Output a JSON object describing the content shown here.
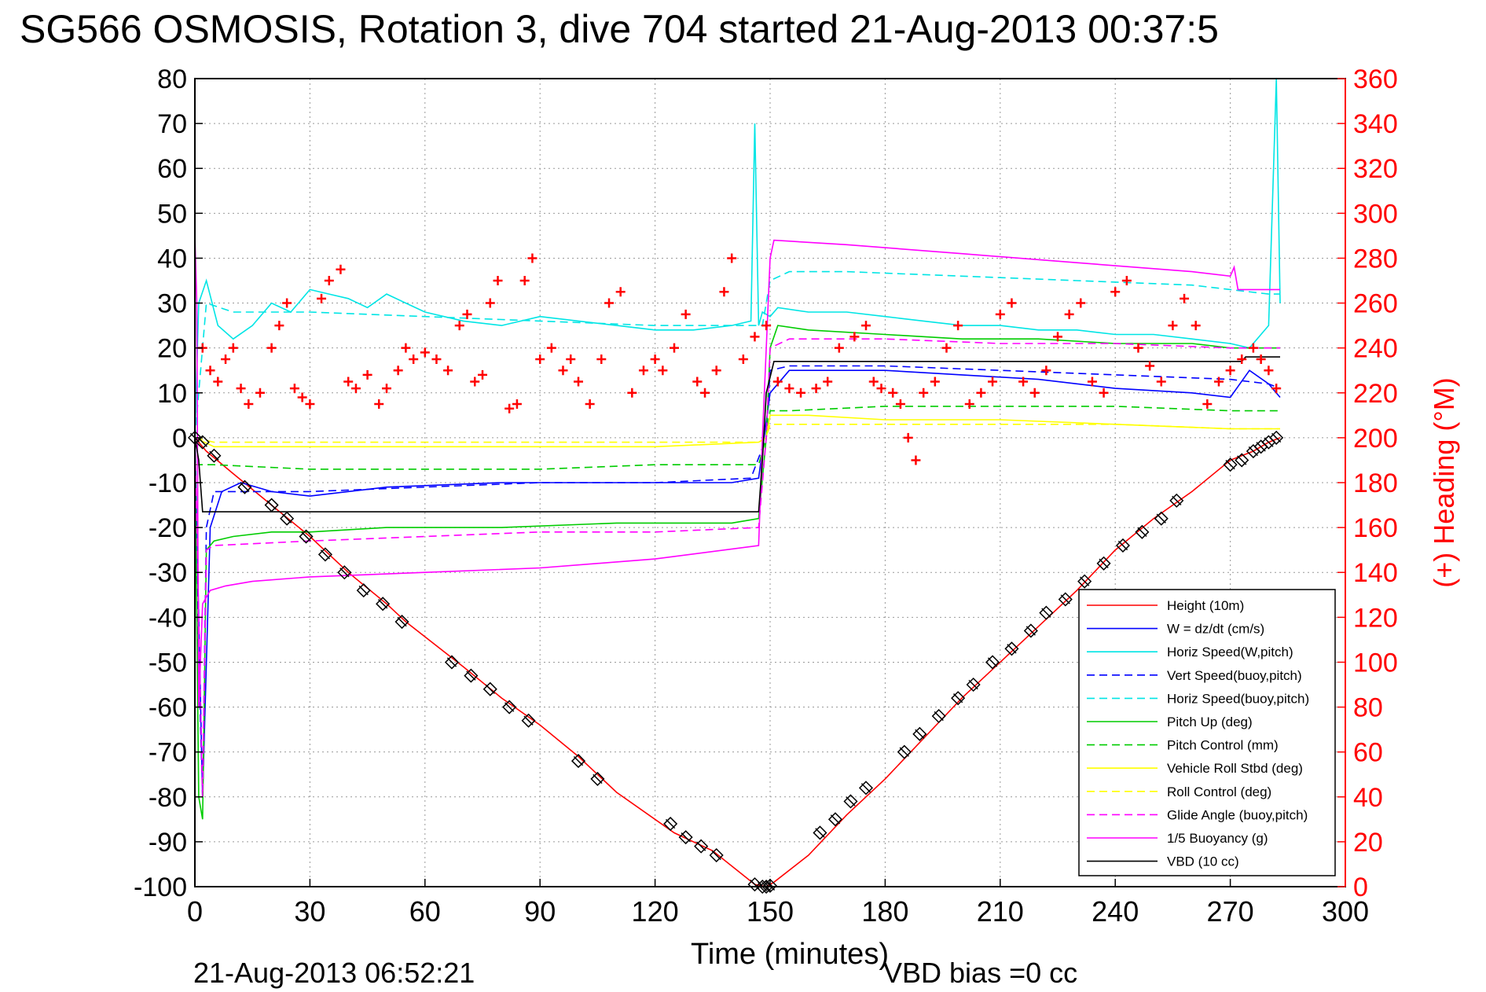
{
  "chart_data": {
    "type": "line",
    "title": "SG566 OSMOSIS, Rotation 3, dive 704 started 21-Aug-2013 00:37:5",
    "xlabel": "Time (minutes)",
    "ylabel": "",
    "y2label": "(+) Heading (°M)",
    "xlim": [
      0,
      300
    ],
    "ylim": [
      -100,
      80
    ],
    "y2lim": [
      0,
      360
    ],
    "xticks": [
      0,
      30,
      60,
      90,
      120,
      150,
      180,
      210,
      240,
      270,
      300
    ],
    "yticks": [
      -100,
      -90,
      -80,
      -70,
      -60,
      -50,
      -40,
      -30,
      -20,
      -10,
      0,
      10,
      20,
      30,
      40,
      50,
      60,
      70,
      80
    ],
    "y2ticks": [
      0,
      20,
      40,
      60,
      80,
      100,
      120,
      140,
      160,
      180,
      200,
      220,
      240,
      260,
      280,
      300,
      320,
      340,
      360
    ],
    "grid": true,
    "legend_position": "lower-right",
    "footer_date": "21-Aug-2013 06:52:21",
    "footer_bias": "VBD bias =0 cc",
    "series": [
      {
        "name": "Height (10m)",
        "color": "#ff0000",
        "dash": "solid",
        "x": [
          0,
          3,
          10,
          20,
          30,
          40,
          50,
          55,
          70,
          80,
          90,
          100,
          110,
          125,
          135,
          146,
          149,
          151,
          160,
          170,
          180,
          190,
          200,
          210,
          220,
          230,
          240,
          250,
          260,
          270,
          276,
          280,
          283
        ],
        "y": [
          0,
          -3,
          -8,
          -15,
          -22,
          -30,
          -37,
          -41,
          -51,
          -58,
          -64,
          -71,
          -79,
          -88,
          -92,
          -99.5,
          -100,
          -99,
          -93,
          -84,
          -76,
          -67,
          -58,
          -50,
          -42,
          -34,
          -25,
          -18,
          -12,
          -5,
          -3,
          -1,
          0
        ]
      },
      {
        "name": "W = dz/dt (cm/s)",
        "color": "#0000ff",
        "dash": "solid",
        "x": [
          0,
          1,
          2,
          4,
          7,
          12,
          20,
          30,
          50,
          80,
          110,
          140,
          147,
          150,
          155,
          160,
          180,
          200,
          220,
          240,
          260,
          270,
          275,
          280,
          283
        ],
        "y": [
          0,
          -40,
          -80,
          -20,
          -12,
          -10,
          -12,
          -13,
          -11,
          -10,
          -10,
          -10,
          -9,
          10,
          15,
          15,
          15,
          14,
          13,
          11,
          10,
          9,
          15,
          12,
          9
        ]
      },
      {
        "name": "Horiz Speed(W,pitch)",
        "color": "#00e5e5",
        "dash": "solid",
        "x": [
          0,
          1,
          3,
          6,
          10,
          15,
          20,
          25,
          30,
          35,
          40,
          45,
          50,
          55,
          60,
          70,
          80,
          90,
          100,
          110,
          120,
          130,
          140,
          145,
          146,
          147,
          148,
          150,
          152,
          160,
          170,
          180,
          190,
          200,
          210,
          220,
          230,
          240,
          250,
          260,
          270,
          275,
          280,
          282,
          283
        ],
        "y": [
          0,
          30,
          35,
          25,
          22,
          25,
          30,
          28,
          33,
          32,
          31,
          29,
          32,
          30,
          28,
          26,
          25,
          27,
          26,
          25,
          24,
          24,
          25,
          26,
          70,
          25,
          28,
          27,
          29,
          28,
          28,
          27,
          26,
          25,
          25,
          24,
          24,
          23,
          23,
          22,
          21,
          20,
          25,
          80,
          30
        ]
      },
      {
        "name": "Vert Speed(buoy,pitch)",
        "color": "#0000ff",
        "dash": "dashed",
        "x": [
          0,
          1,
          2,
          3,
          5,
          15,
          30,
          60,
          90,
          120,
          145,
          149,
          150,
          155,
          180,
          210,
          240,
          270,
          280,
          283
        ],
        "y": [
          0,
          -50,
          -80,
          -20,
          -12,
          -12,
          -12,
          -11,
          -10,
          -10,
          -9,
          0,
          15,
          16,
          16,
          15,
          14,
          13,
          12,
          11
        ]
      },
      {
        "name": "Horiz Speed(buoy,pitch)",
        "color": "#00e5e5",
        "dash": "dashed",
        "x": [
          0,
          3,
          10,
          30,
          60,
          90,
          120,
          145,
          148,
          150,
          155,
          170,
          200,
          230,
          260,
          280,
          283
        ],
        "y": [
          0,
          30,
          28,
          28,
          27,
          26,
          25,
          25,
          25,
          35,
          37,
          37,
          36,
          35,
          34,
          32,
          32
        ]
      },
      {
        "name": "Pitch Up (deg)",
        "color": "#00cc00",
        "dash": "solid",
        "x": [
          0,
          1,
          2,
          3,
          5,
          10,
          20,
          30,
          50,
          80,
          110,
          140,
          147,
          149,
          150,
          152,
          160,
          180,
          200,
          220,
          240,
          260,
          270,
          280,
          283
        ],
        "y": [
          0,
          -80,
          -85,
          -25,
          -23,
          -22,
          -21,
          -21,
          -20,
          -20,
          -19,
          -19,
          -18,
          0,
          20,
          25,
          24,
          23,
          22,
          22,
          21,
          21,
          20,
          20,
          20
        ]
      },
      {
        "name": "Pitch Control (mm)",
        "color": "#00cc00",
        "dash": "dashed",
        "x": [
          0,
          5,
          30,
          60,
          90,
          120,
          147,
          149,
          150,
          155,
          180,
          210,
          240,
          270,
          283
        ],
        "y": [
          -6,
          -6,
          -7,
          -7,
          -7,
          -6,
          -6,
          0,
          6,
          6,
          7,
          7,
          7,
          6,
          6
        ]
      },
      {
        "name": "Vehicle Roll Stbd (deg)",
        "color": "#ffff00",
        "dash": "solid",
        "x": [
          0,
          5,
          30,
          60,
          90,
          120,
          147,
          149,
          150,
          160,
          180,
          210,
          240,
          270,
          283
        ],
        "y": [
          0,
          -2,
          -2,
          -2,
          -2,
          -2,
          -1,
          0,
          5,
          5,
          4,
          4,
          3,
          2,
          2
        ]
      },
      {
        "name": "Roll Control (deg)",
        "color": "#ffff00",
        "dash": "dashed",
        "x": [
          0,
          5,
          30,
          60,
          90,
          120,
          147,
          149,
          150,
          160,
          180,
          210,
          240,
          270,
          283
        ],
        "y": [
          0,
          -1,
          -1,
          -1,
          -1,
          -1,
          -1,
          0,
          3,
          3,
          3,
          3,
          3,
          2,
          2
        ]
      },
      {
        "name": "Glide Angle (buoy,pitch)",
        "color": "#ff00ff",
        "dash": "dashed",
        "x": [
          0,
          1,
          2,
          3,
          5,
          30,
          60,
          90,
          120,
          147,
          149,
          150,
          155,
          180,
          210,
          240,
          270,
          283
        ],
        "y": [
          0,
          -40,
          -80,
          -25,
          -24,
          -23,
          -22,
          -21,
          -21,
          -20,
          0,
          20,
          22,
          22,
          21,
          21,
          20,
          20
        ]
      },
      {
        "name": "1/5 Buoyancy (g)",
        "color": "#ff00ff",
        "dash": "solid",
        "x": [
          0,
          0.5,
          1,
          2,
          4,
          8,
          15,
          30,
          60,
          90,
          120,
          147,
          148,
          149,
          150,
          151,
          170,
          200,
          230,
          260,
          270,
          271,
          272,
          280,
          283
        ],
        "y": [
          45,
          30,
          -60,
          -37,
          -34,
          -33,
          -32,
          -31,
          -30,
          -29,
          -27,
          -24,
          0,
          20,
          40,
          44,
          43,
          41,
          39,
          37,
          36,
          38,
          33,
          33,
          33
        ]
      },
      {
        "name": "VBD (10 cc)",
        "color": "#000000",
        "dash": "solid",
        "x": [
          0,
          1,
          2,
          147,
          148,
          149,
          151,
          273,
          274,
          283
        ],
        "y": [
          0,
          -5,
          -16.5,
          -16.5,
          -5,
          10,
          17,
          17,
          18,
          18
        ]
      }
    ],
    "heading_points": [
      [
        2,
        240
      ],
      [
        4,
        230
      ],
      [
        6,
        225
      ],
      [
        8,
        235
      ],
      [
        10,
        240
      ],
      [
        12,
        222
      ],
      [
        14,
        215
      ],
      [
        17,
        220
      ],
      [
        20,
        240
      ],
      [
        22,
        250
      ],
      [
        24,
        260
      ],
      [
        26,
        222
      ],
      [
        28,
        218
      ],
      [
        30,
        215
      ],
      [
        33,
        262
      ],
      [
        35,
        270
      ],
      [
        38,
        275
      ],
      [
        40,
        225
      ],
      [
        42,
        222
      ],
      [
        45,
        228
      ],
      [
        48,
        215
      ],
      [
        50,
        222
      ],
      [
        53,
        230
      ],
      [
        55,
        240
      ],
      [
        57,
        235
      ],
      [
        60,
        238
      ],
      [
        63,
        235
      ],
      [
        66,
        230
      ],
      [
        69,
        250
      ],
      [
        71,
        255
      ],
      [
        73,
        225
      ],
      [
        75,
        228
      ],
      [
        77,
        260
      ],
      [
        79,
        270
      ],
      [
        82,
        213
      ],
      [
        84,
        215
      ],
      [
        86,
        270
      ],
      [
        88,
        280
      ],
      [
        90,
        235
      ],
      [
        93,
        240
      ],
      [
        96,
        230
      ],
      [
        98,
        235
      ],
      [
        100,
        225
      ],
      [
        103,
        215
      ],
      [
        106,
        235
      ],
      [
        108,
        260
      ],
      [
        111,
        265
      ],
      [
        114,
        220
      ],
      [
        117,
        230
      ],
      [
        120,
        235
      ],
      [
        122,
        230
      ],
      [
        125,
        240
      ],
      [
        128,
        255
      ],
      [
        131,
        225
      ],
      [
        133,
        220
      ],
      [
        136,
        230
      ],
      [
        138,
        265
      ],
      [
        140,
        280
      ],
      [
        143,
        235
      ],
      [
        146,
        245
      ],
      [
        149,
        250
      ],
      [
        152,
        225
      ],
      [
        155,
        222
      ],
      [
        158,
        220
      ],
      [
        162,
        222
      ],
      [
        165,
        225
      ],
      [
        168,
        240
      ],
      [
        172,
        245
      ],
      [
        175,
        250
      ],
      [
        177,
        225
      ],
      [
        179,
        222
      ],
      [
        182,
        220
      ],
      [
        184,
        215
      ],
      [
        186,
        200
      ],
      [
        188,
        190
      ],
      [
        190,
        220
      ],
      [
        193,
        225
      ],
      [
        196,
        240
      ],
      [
        199,
        250
      ],
      [
        202,
        215
      ],
      [
        205,
        220
      ],
      [
        208,
        225
      ],
      [
        210,
        255
      ],
      [
        213,
        260
      ],
      [
        216,
        225
      ],
      [
        219,
        220
      ],
      [
        222,
        230
      ],
      [
        225,
        245
      ],
      [
        228,
        255
      ],
      [
        231,
        260
      ],
      [
        234,
        225
      ],
      [
        237,
        220
      ],
      [
        240,
        265
      ],
      [
        243,
        270
      ],
      [
        246,
        240
      ],
      [
        249,
        232
      ],
      [
        252,
        225
      ],
      [
        255,
        250
      ],
      [
        258,
        262
      ],
      [
        261,
        250
      ],
      [
        264,
        215
      ],
      [
        267,
        225
      ],
      [
        270,
        230
      ],
      [
        273,
        235
      ],
      [
        276,
        240
      ],
      [
        278,
        235
      ],
      [
        280,
        230
      ],
      [
        282,
        222
      ]
    ],
    "depth_markers": [
      [
        0,
        0
      ],
      [
        2,
        -1
      ],
      [
        5,
        -4
      ],
      [
        13,
        -11
      ],
      [
        20,
        -15
      ],
      [
        24,
        -18
      ],
      [
        29,
        -22
      ],
      [
        34,
        -26
      ],
      [
        39,
        -30
      ],
      [
        44,
        -34
      ],
      [
        49,
        -37
      ],
      [
        54,
        -41
      ],
      [
        67,
        -50
      ],
      [
        72,
        -53
      ],
      [
        77,
        -56
      ],
      [
        82,
        -60
      ],
      [
        87,
        -63
      ],
      [
        100,
        -72
      ],
      [
        105,
        -76
      ],
      [
        124,
        -86
      ],
      [
        128,
        -89
      ],
      [
        132,
        -91
      ],
      [
        136,
        -93
      ],
      [
        146,
        -99.5
      ],
      [
        148,
        -100
      ],
      [
        149,
        -100
      ],
      [
        150,
        -99.8
      ],
      [
        163,
        -88
      ],
      [
        167,
        -85
      ],
      [
        171,
        -81
      ],
      [
        175,
        -78
      ],
      [
        185,
        -70
      ],
      [
        189,
        -66
      ],
      [
        194,
        -62
      ],
      [
        199,
        -58
      ],
      [
        203,
        -55
      ],
      [
        208,
        -50
      ],
      [
        213,
        -47
      ],
      [
        218,
        -43
      ],
      [
        222,
        -39
      ],
      [
        227,
        -36
      ],
      [
        232,
        -32
      ],
      [
        237,
        -28
      ],
      [
        242,
        -24
      ],
      [
        247,
        -21
      ],
      [
        252,
        -18
      ],
      [
        256,
        -14
      ],
      [
        270,
        -6
      ],
      [
        273,
        -5
      ],
      [
        276,
        -3
      ],
      [
        278,
        -2
      ],
      [
        280,
        -1
      ],
      [
        282,
        0
      ]
    ]
  }
}
